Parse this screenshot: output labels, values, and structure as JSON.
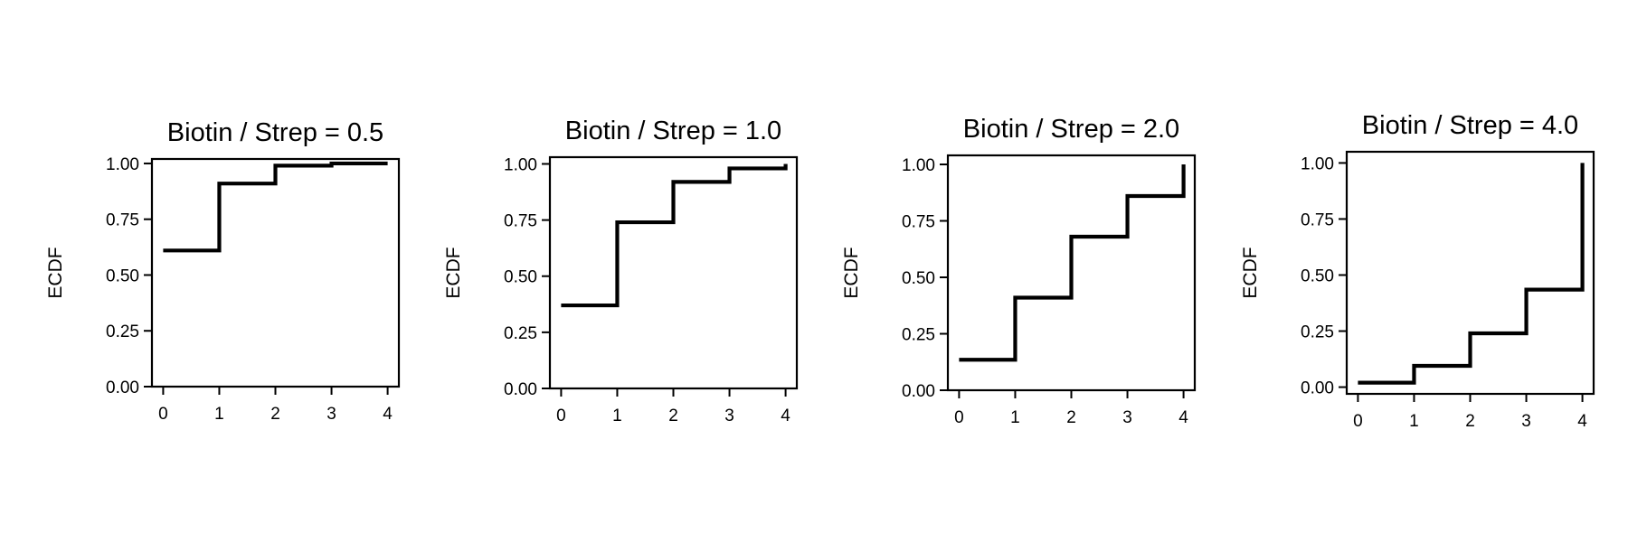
{
  "chart_data": [
    {
      "type": "line",
      "step": "post",
      "title": "Biotin / Strep = 0.5",
      "ylabel": "ECDF",
      "xlabel": "",
      "x": [
        0,
        1,
        2,
        3,
        4
      ],
      "values": [
        0.61,
        0.91,
        0.99,
        1.0,
        1.0
      ],
      "xlim": [
        -0.2,
        4.2
      ],
      "ylim": [
        0,
        1.02
      ],
      "xticks": [
        "0",
        "1",
        "2",
        "3",
        "4"
      ],
      "yticks": [
        "0.00",
        "0.25",
        "0.50",
        "0.75",
        "1.00"
      ],
      "grid": false,
      "line_color": "#000000"
    },
    {
      "type": "line",
      "step": "post",
      "title": "Biotin / Strep = 1.0",
      "ylabel": "ECDF",
      "xlabel": "",
      "x": [
        0,
        1,
        2,
        3,
        4
      ],
      "values": [
        0.37,
        0.74,
        0.92,
        0.98,
        1.0
      ],
      "xlim": [
        -0.2,
        4.2
      ],
      "ylim": [
        0,
        1.03
      ],
      "xticks": [
        "0",
        "1",
        "2",
        "3",
        "4"
      ],
      "yticks": [
        "0.00",
        "0.25",
        "0.50",
        "0.75",
        "1.00"
      ],
      "grid": false,
      "line_color": "#000000"
    },
    {
      "type": "line",
      "step": "post",
      "title": "Biotin / Strep = 2.0",
      "ylabel": "ECDF",
      "xlabel": "",
      "x": [
        0,
        1,
        2,
        3,
        4
      ],
      "values": [
        0.135,
        0.41,
        0.68,
        0.86,
        1.0
      ],
      "xlim": [
        -0.2,
        4.2
      ],
      "ylim": [
        0,
        1.04
      ],
      "xticks": [
        "0",
        "1",
        "2",
        "3",
        "4"
      ],
      "yticks": [
        "0.00",
        "0.25",
        "0.50",
        "0.75",
        "1.00"
      ],
      "grid": false,
      "line_color": "#000000"
    },
    {
      "type": "line",
      "step": "post",
      "title": "Biotin / Strep = 4.0",
      "ylabel": "ECDF",
      "xlabel": "",
      "x": [
        0,
        1,
        2,
        3,
        4
      ],
      "values": [
        0.02,
        0.095,
        0.24,
        0.435,
        1.0
      ],
      "xlim": [
        -0.2,
        4.2
      ],
      "ylim": [
        -0.03,
        1.05
      ],
      "xticks": [
        "0",
        "1",
        "2",
        "3",
        "4"
      ],
      "yticks": [
        "0.00",
        "0.25",
        "0.50",
        "0.75",
        "1.00"
      ],
      "grid": false,
      "line_color": "#000000"
    }
  ]
}
